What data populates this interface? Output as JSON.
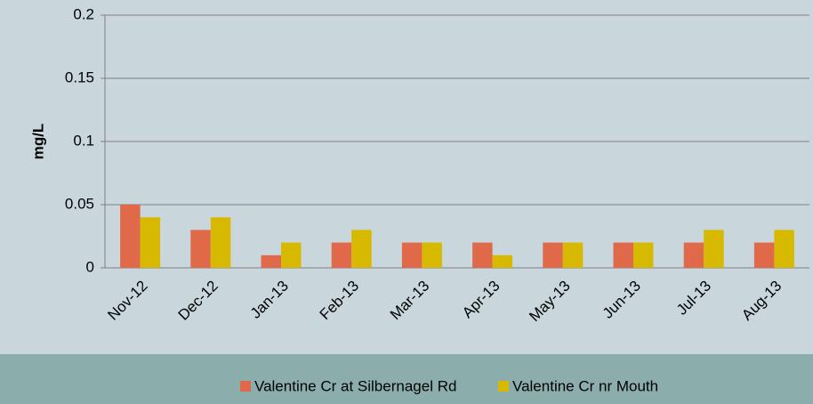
{
  "chart_data": {
    "type": "bar",
    "ylabel": "mg/L",
    "categories": [
      "Nov-12",
      "Dec-12",
      "Jan-13",
      "Feb-13",
      "Mar-13",
      "Apr-13",
      "May-13",
      "Jun-13",
      "Jul-13",
      "Aug-13"
    ],
    "series": [
      {
        "name": "Valentine Cr at Silbernagel Rd",
        "color": "#e0694a",
        "values": [
          0.05,
          0.03,
          0.01,
          0.02,
          0.02,
          0.02,
          0.02,
          0.02,
          0.02,
          0.02
        ]
      },
      {
        "name": "Valentine Cr nr Mouth",
        "color": "#d6b900",
        "values": [
          0.04,
          0.04,
          0.02,
          0.03,
          0.02,
          0.01,
          0.02,
          0.02,
          0.03,
          0.03
        ]
      }
    ],
    "ylim": [
      0,
      0.2
    ],
    "yticks": [
      0,
      0.05,
      0.1,
      0.15,
      0.2
    ],
    "grid": true,
    "legend": "bottom"
  }
}
